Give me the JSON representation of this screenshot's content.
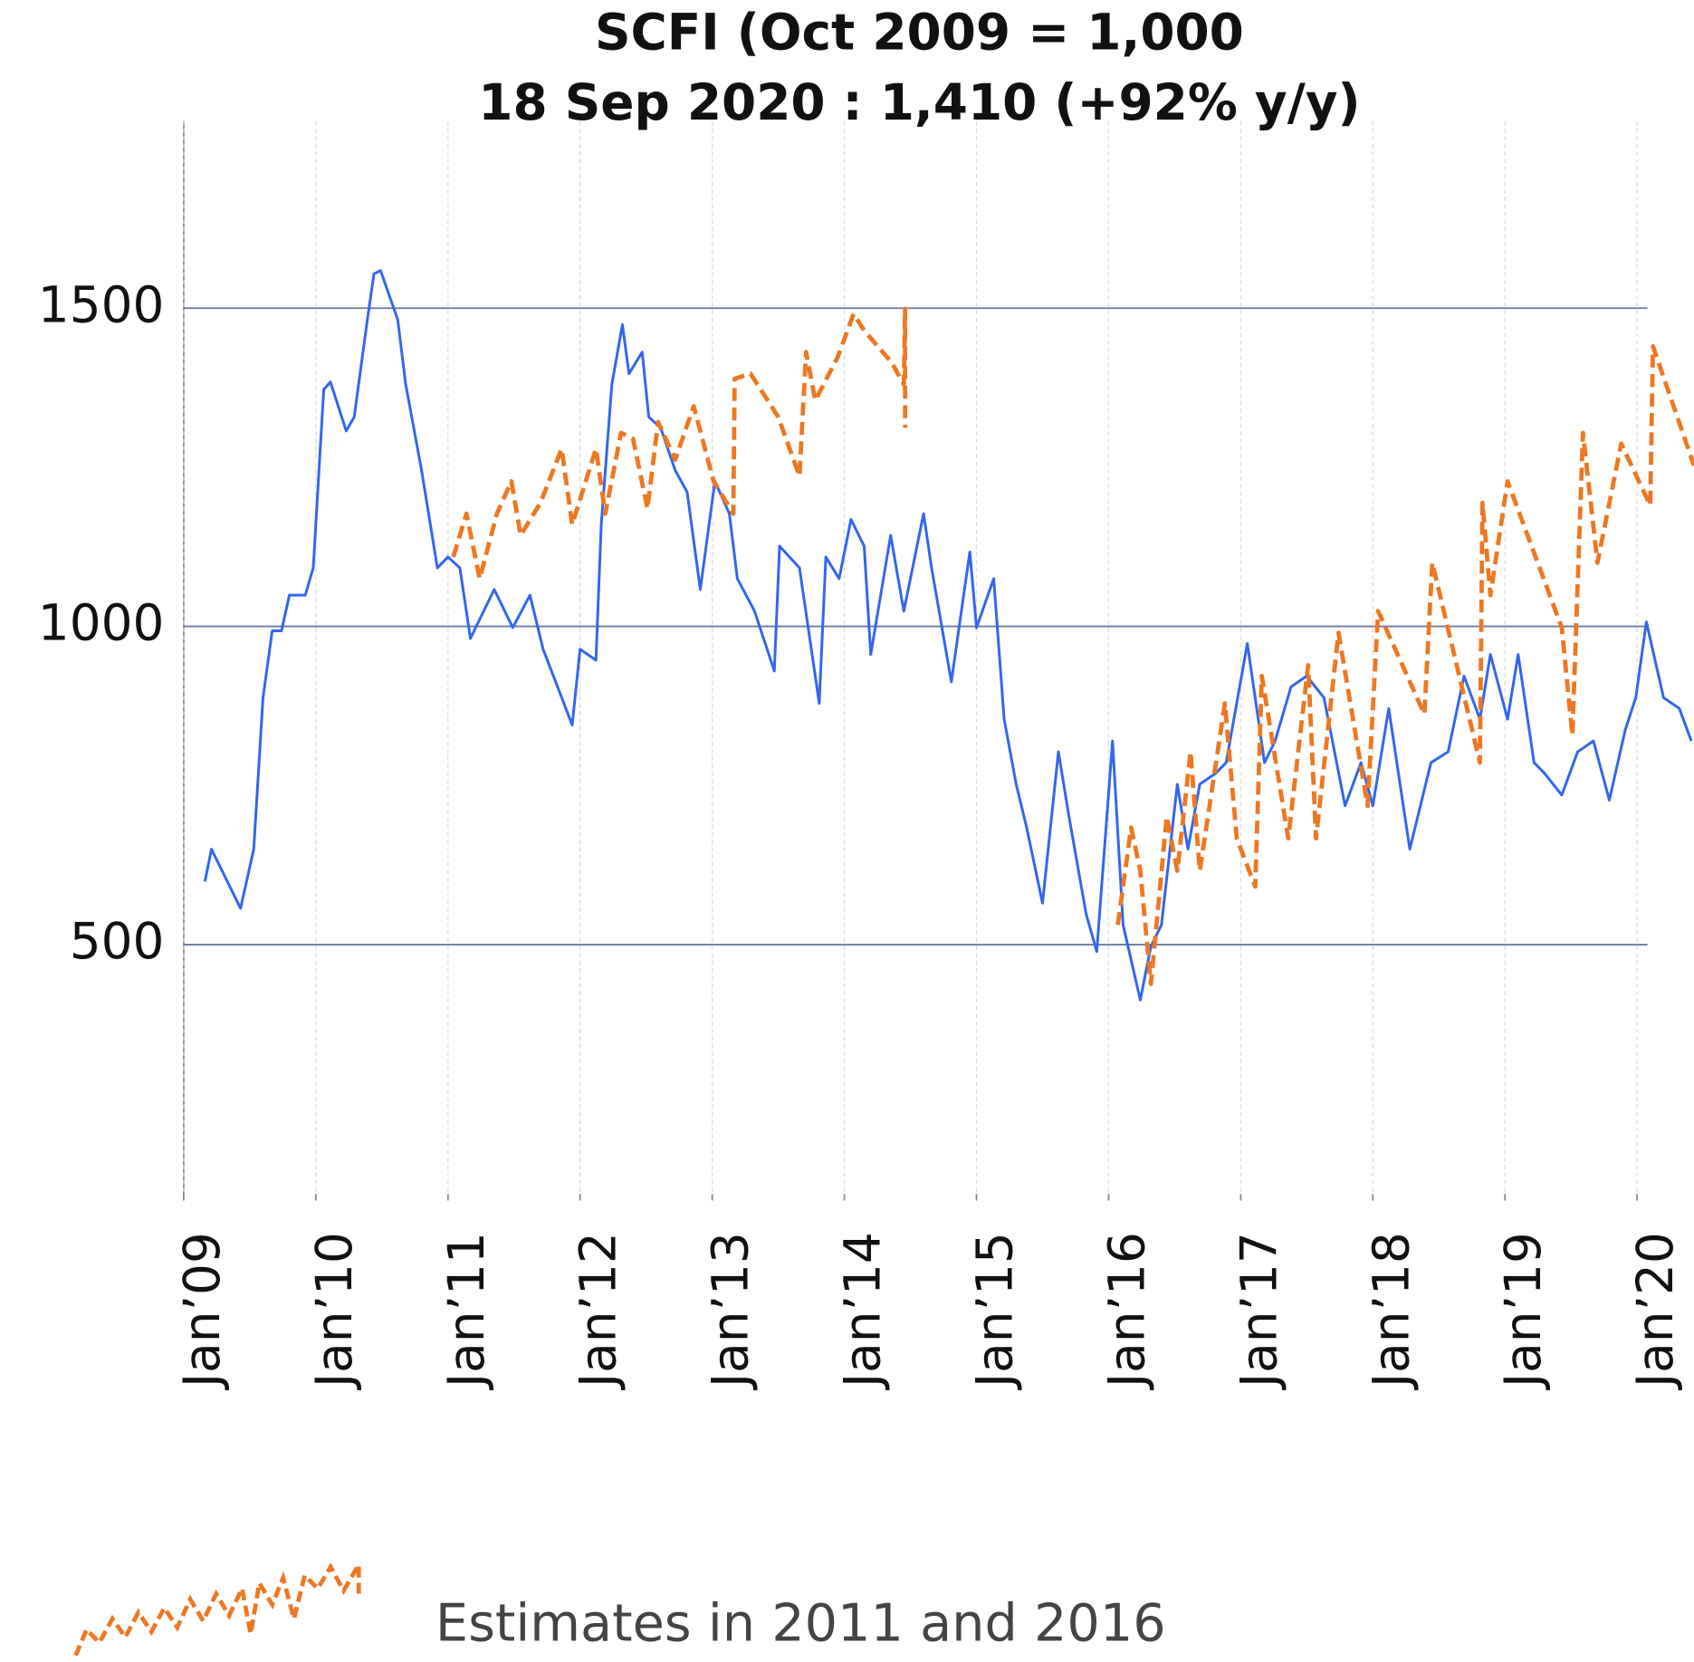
{
  "chart_data": {
    "type": "line",
    "title": "SCFI (Oct 2009 = 1,000",
    "subtitle": "18 Sep 2020 : 1,410 (+92% y/y)",
    "xlim": [
      2009,
      2020.43
    ],
    "xticks": [
      {
        "value": 2009,
        "label": "Jan’09"
      },
      {
        "value": 2010,
        "label": "Jan’10"
      },
      {
        "value": 2011,
        "label": "Jan’11"
      },
      {
        "value": 2012,
        "label": "Jan’12"
      },
      {
        "value": 2013,
        "label": "Jan’13"
      },
      {
        "value": 2014,
        "label": "Jan’14"
      },
      {
        "value": 2015,
        "label": "Jan’15"
      },
      {
        "value": 2016,
        "label": "Jan’16"
      },
      {
        "value": 2017,
        "label": "Jan’17"
      },
      {
        "value": 2018,
        "label": "Jan’18"
      },
      {
        "value": 2019,
        "label": "Jan’19"
      },
      {
        "value": 2020,
        "label": "Jan’20"
      }
    ],
    "ylim": [
      108,
      1794
    ],
    "yticks": [
      500,
      1000,
      1500
    ],
    "grid": true,
    "legend": "bottom-left",
    "series": [
      {
        "color": "#3366ee",
        "dashed": false,
        "x": [
          2009.16,
          2009.21,
          2009.37,
          2009.43,
          2009.53,
          2009.6,
          2009.67,
          2009.74,
          2009.8,
          2009.92,
          2009.98,
          2010.06,
          2010.11,
          2010.23,
          2010.29,
          2010.39,
          2010.44,
          2010.49,
          2010.62,
          2010.68,
          2010.8,
          2010.92,
          2011.0,
          2011.09,
          2011.17,
          2011.35,
          2011.49,
          2011.62,
          2011.72,
          2011.94,
          2012.0,
          2012.12,
          2012.16,
          2012.24,
          2012.32,
          2012.37,
          2012.47,
          2012.52,
          2012.61,
          2012.72,
          2012.81,
          2012.91,
          2013.02,
          2013.13,
          2013.19,
          2013.32,
          2013.47,
          2013.51,
          2013.66,
          2013.81,
          2013.86,
          2013.96,
          2014.05,
          2014.15,
          2014.2,
          2014.35,
          2014.45,
          2014.6,
          2014.66,
          2014.81,
          2014.95,
          2015.0,
          2015.13,
          2015.21,
          2015.3,
          2015.38,
          2015.5,
          2015.62,
          2015.7,
          2015.83,
          2015.91,
          2016.03,
          2016.11,
          2016.24,
          2016.32,
          2016.4,
          2016.52,
          2016.6,
          2016.69,
          2016.81,
          2016.89,
          2017.05,
          2017.18,
          2017.26,
          2017.38,
          2017.5,
          2017.63,
          2017.79,
          2017.91,
          2018.0,
          2018.12,
          2018.28,
          2018.44,
          2018.57,
          2018.69,
          2018.81,
          2018.89,
          2019.02,
          2019.1,
          2019.22,
          2019.3,
          2019.43,
          2019.55,
          2019.67,
          2019.79,
          2019.91,
          2019.99,
          2020.07,
          2020.2,
          2020.32,
          2020.41
        ],
        "values": [
          599,
          650,
          582,
          557,
          650,
          888,
          993,
          993,
          1049,
          1049,
          1092,
          1372,
          1384,
          1307,
          1329,
          1482,
          1554,
          1559,
          1482,
          1380,
          1245,
          1092,
          1109,
          1092,
          981,
          1058,
          998,
          1049,
          964,
          845,
          964,
          947,
          1160,
          1380,
          1474,
          1397,
          1431,
          1329,
          1312,
          1245,
          1211,
          1058,
          1228,
          1177,
          1075,
          1024,
          930,
          1126,
          1092,
          879,
          1109,
          1075,
          1168,
          1126,
          956,
          1143,
          1024,
          1177,
          1092,
          913,
          1117,
          998,
          1075,
          854,
          752,
          684,
          565,
          803,
          701,
          548,
          489,
          820,
          531,
          413,
          497,
          531,
          752,
          650,
          752,
          769,
          786,
          973,
          786,
          820,
          905,
          922,
          888,
          718,
          786,
          718,
          871,
          650,
          786,
          803,
          922,
          854,
          956,
          854,
          956,
          786,
          769,
          735,
          803,
          820,
          727,
          837,
          888,
          1007,
          888,
          871,
          820
        ]
      },
      {
        "name": "Estimates in 2011 and 2016",
        "color": "#ee7722",
        "dashed": true,
        "x": [
          2011.04,
          2011.14,
          2011.24,
          2011.37,
          2011.48,
          2011.55,
          2011.7,
          2011.86,
          2011.94,
          2012.12,
          2012.19,
          2012.31,
          2012.4,
          2012.51,
          2012.59,
          2012.72,
          2012.86,
          2013.01,
          2013.16,
          2013.17,
          2013.29,
          2013.5,
          2013.66,
          2013.71,
          2013.78,
          2013.95,
          2014.07,
          2014.15,
          2014.36,
          2014.45,
          2014.46,
          2014.46,
          2015.5,
          2016.07,
          2016.17,
          2016.24,
          2016.32,
          2016.44,
          2016.52,
          2016.62,
          2016.69,
          2016.88,
          2016.97,
          2017.11,
          2017.16,
          2017.36,
          2017.51,
          2017.57,
          2017.74,
          2017.96,
          2018.04,
          2018.39,
          2018.45,
          2018.81,
          2018.83,
          2018.89,
          2019.02,
          2019.43,
          2019.51,
          2019.59,
          2019.7,
          2019.88,
          2020.1,
          2020.12,
          2020.43
        ],
        "values": [
          1109,
          1177,
          1075,
          1177,
          1228,
          1143,
          1194,
          1279,
          1160,
          1279,
          1177,
          1304,
          1295,
          1185,
          1321,
          1262,
          1346,
          1228,
          1177,
          1389,
          1397,
          1329,
          1236,
          1431,
          1355,
          1423,
          1491,
          1465,
          1414,
          1380,
          1499,
          1312,
          null,
          531,
          684,
          616,
          438,
          701,
          616,
          803,
          616,
          879,
          667,
          591,
          922,
          667,
          939,
          667,
          990,
          718,
          1024,
          862,
          1100,
          786,
          1194,
          1049,
          1228,
          998,
          829,
          1304,
          1100,
          1287,
          1190,
          1440,
          1253
        ]
      }
    ]
  }
}
